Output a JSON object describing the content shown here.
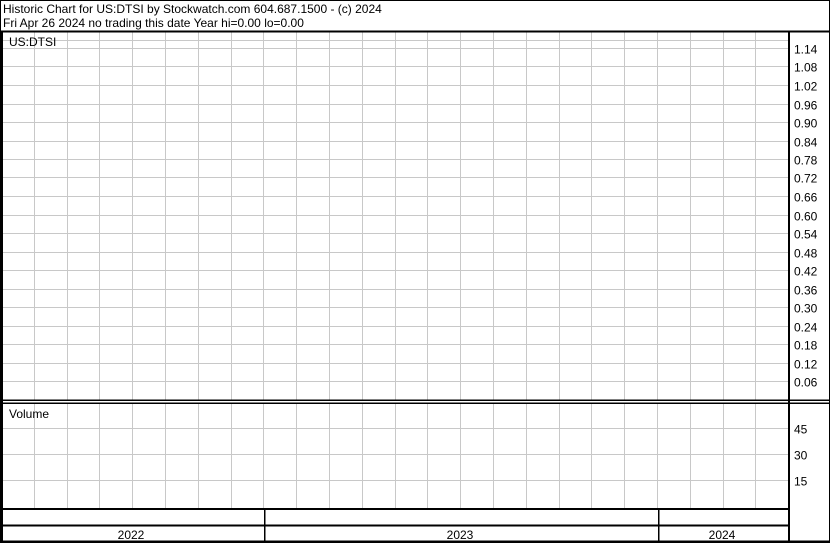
{
  "header": {
    "title": "Historic Chart for US:DTSI by Stockwatch.com 604.687.1500 - (c) 2024",
    "subtitle": "Fri Apr 26 2024   no trading this date  Year hi=0.00  lo=0.00"
  },
  "chart_data": [
    {
      "type": "line",
      "title": "US:DTSI",
      "ylim": [
        0,
        1.14
      ],
      "y_ticks": [
        "1.14",
        "1.08",
        "1.02",
        "0.96",
        "0.90",
        "0.84",
        "0.78",
        "0.72",
        "0.66",
        "0.60",
        "0.54",
        "0.48",
        "0.42",
        "0.36",
        "0.30",
        "0.24",
        "0.18",
        "0.12",
        "0.06"
      ],
      "grid": true,
      "series": []
    },
    {
      "type": "bar",
      "title": "Volume",
      "ylim": [
        0,
        45
      ],
      "y_ticks": [
        "45",
        "30",
        "15"
      ],
      "grid": true,
      "series": []
    }
  ],
  "x_axis": {
    "years": [
      "2022",
      "2023",
      "2024"
    ]
  },
  "colors": {
    "grid": "#c8c8c8",
    "frame": "#000000",
    "background": "#ffffff"
  }
}
